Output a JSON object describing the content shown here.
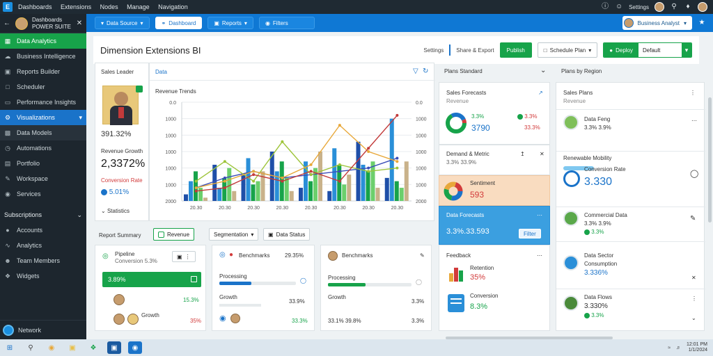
{
  "topbar": {
    "logo": "E",
    "menu": [
      "Dashboards",
      "Extensions",
      "Nodes",
      "Manage",
      "Navigation"
    ],
    "user_label": "Settings",
    "icons": [
      "help-icon",
      "user-icon",
      "search-icon",
      "bell-icon"
    ]
  },
  "sidebar": {
    "user_name": "Dashboards",
    "user_sub": "POWER SUITE",
    "items": [
      {
        "icon": "grid-icon",
        "label": "Data Analytics"
      },
      {
        "icon": "cloud-icon",
        "label": "Business Intelligence"
      },
      {
        "icon": "doc-icon",
        "label": "Reports Builder"
      },
      {
        "icon": "calendar-icon",
        "label": "Scheduler"
      },
      {
        "icon": "monitor-icon",
        "label": "Performance Insights"
      },
      {
        "icon": "settings-icon",
        "label": "Visualizations"
      },
      {
        "icon": "box-icon",
        "label": "Data Models"
      },
      {
        "icon": "clock-icon",
        "label": "Automations"
      },
      {
        "icon": "chart-icon",
        "label": "Portfolio"
      },
      {
        "icon": "pen-icon",
        "label": "Workspace"
      },
      {
        "icon": "globe-icon",
        "label": "Services"
      }
    ],
    "section_title": "Subscriptions",
    "section_items": [
      {
        "icon": "avatar",
        "label": "Accounts"
      },
      {
        "icon": "wave-icon",
        "label": "Analytics"
      },
      {
        "icon": "person-icon",
        "label": "Team Members"
      },
      {
        "icon": "tools-icon",
        "label": "Widgets"
      }
    ],
    "footer": "Network"
  },
  "bluebar": {
    "buttons": [
      "Data Source",
      "Dashboard",
      "Reports",
      "Filters"
    ],
    "user": "Business Analyst"
  },
  "page": {
    "title": "Dimension Extensions BI",
    "right_small": "Settings",
    "right_small2": "Share & Export",
    "button_green": "Publish",
    "button_outline": "Schedule Plan",
    "button_split": "Deploy",
    "split_value": "Default"
  },
  "profile_card": {
    "title": "Sales Leader",
    "value1": "391.32%",
    "label2": "Revenue Growth",
    "value2": "2,3372%",
    "label3": "Conversion Rate",
    "value3": "5.01%",
    "footer": "Statistics"
  },
  "chart_card": {
    "tab": "Data",
    "title": "Revenue Trends",
    "chart_data": {
      "type": "bar",
      "title": "",
      "x": [
        "20.30",
        "20.30",
        "20.30",
        "20.30",
        "20.30",
        "20.30",
        "20.30",
        "20.30"
      ],
      "ylim": [
        0,
        300
      ],
      "yticks": [
        "0.0",
        "1000",
        "1000",
        "1000",
        "1000",
        "1000",
        "2000"
      ],
      "series": [
        {
          "color": "#1f4fa8",
          "values": [
            20,
            110,
            80,
            150,
            40,
            30,
            180,
            70
          ]
        },
        {
          "color": "#2a8fd8",
          "values": [
            60,
            40,
            130,
            90,
            120,
            160,
            110,
            250
          ]
        },
        {
          "color": "#17a34a",
          "values": [
            90,
            70,
            50,
            120,
            60,
            110,
            90,
            60
          ]
        },
        {
          "color": "#6ccf6c",
          "values": [
            40,
            100,
            60,
            70,
            100,
            50,
            120,
            40
          ]
        },
        {
          "color": "#c9b28a",
          "values": [
            10,
            30,
            90,
            30,
            150,
            80,
            40,
            120
          ]
        }
      ],
      "lines": [
        {
          "color": "#3a4db8",
          "values": [
            40,
            70,
            90,
            70,
            80,
            90,
            100,
            130
          ]
        },
        {
          "color": "#9ec43a",
          "values": [
            60,
            120,
            60,
            180,
            80,
            110,
            90,
            100
          ]
        },
        {
          "color": "#e8a83a",
          "values": [
            40,
            60,
            90,
            70,
            110,
            230,
            150,
            120
          ]
        },
        {
          "color": "#c23a3a",
          "values": [
            30,
            40,
            80,
            60,
            90,
            60,
            160,
            260
          ]
        }
      ]
    }
  },
  "row_bottom": {
    "title": "Report Summary",
    "chip1": "Revenue",
    "chip2": "Segmentation",
    "chip3": "Data Status",
    "card1": {
      "title": "Pipeline",
      "sub": "Conversion 5.3%",
      "green_bar": "3.89%",
      "row1_val": "15.3%",
      "row2_name": "Growth",
      "row2_val": "35%"
    },
    "card2": {
      "title": "Benchmarks",
      "header_val": "29.35%",
      "bar_label": "Processing",
      "row1": "Growth",
      "row1_val": "33.9%",
      "row2_val": "33.3%"
    },
    "card3": {
      "title": "Benchmarks",
      "bar_label": "Processing",
      "row1": "Growth",
      "row1_val": "3.3%",
      "row2": "33.1% 39.8%",
      "row2_val": "3.3%"
    }
  },
  "mid_col": {
    "header": "Plans Standard",
    "card1": {
      "title": "Sales Forecasts",
      "sub": "Revenue",
      "v1": "3.3%",
      "v2": "3.3%",
      "big": "3790",
      "pct": "33.3%"
    },
    "card2": {
      "title": "Demand & Metric",
      "sub": "3.3% 33.9%",
      "fill_label": "Sentiment",
      "val": "593"
    },
    "card3": {
      "title": "Data Forecasts",
      "val": "3.3%.33.593",
      "btn": "Filter"
    },
    "card4": {
      "title": "Feedback",
      "r1": "Retention",
      "r1v": "35%",
      "r2": "Conversion",
      "r2v": "8.3%"
    }
  },
  "right_col": {
    "header": "Plans by Region",
    "card1": {
      "title": "Sales Plans",
      "sub": "Revenue"
    },
    "rows": [
      {
        "name": "Data Feng",
        "sub": "3.3% 3.9%"
      },
      {
        "name": "Renewable Mobility",
        "sub": "Conversion Rate",
        "big": "3.330"
      },
      {
        "name": "Commercial Data",
        "sub": "3.3% 3.9%",
        "val2": "3.3%"
      },
      {
        "name": "Data Sector",
        "sub": "Consumption",
        "val": "3.336%"
      },
      {
        "name": "Data Flows",
        "val": "3.330%",
        "sub": "3.3%"
      }
    ]
  },
  "taskbar": {
    "time": "12:01 PM",
    "date": "1/1/2024"
  }
}
